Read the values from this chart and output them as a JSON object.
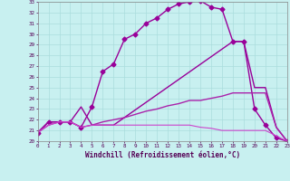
{
  "xlabel": "Windchill (Refroidissement éolien,°C)",
  "xlim": [
    0,
    23
  ],
  "ylim": [
    20,
    33
  ],
  "xtick_labels": [
    "0",
    "1",
    "2",
    "3",
    "4",
    "5",
    "6",
    "7",
    "8",
    "9",
    "10",
    "11",
    "12",
    "13",
    "14",
    "15",
    "16",
    "17",
    "18",
    "19",
    "20",
    "21",
    "22",
    "23"
  ],
  "ytick_labels": [
    "20",
    "21",
    "22",
    "23",
    "24",
    "25",
    "26",
    "27",
    "28",
    "29",
    "30",
    "31",
    "32",
    "33"
  ],
  "background_color": "#c8f0f0",
  "grid_color": "#aadddd",
  "curves": [
    {
      "x": [
        0,
        1,
        2,
        3,
        4,
        5,
        6,
        7,
        8,
        9,
        10,
        11,
        12,
        13,
        14,
        15,
        16,
        17,
        18,
        19,
        20,
        21,
        22,
        23
      ],
      "y": [
        20.8,
        21.8,
        21.8,
        21.8,
        21.3,
        23.2,
        26.5,
        27.2,
        29.5,
        30.0,
        31.0,
        31.5,
        32.3,
        32.8,
        33.0,
        33.1,
        32.5,
        32.3,
        29.3,
        29.3,
        23.0,
        21.5,
        20.3,
        20.0
      ],
      "marker": "D",
      "markersize": 2.5,
      "linewidth": 1.0,
      "color": "#990099"
    },
    {
      "x": [
        0,
        1,
        2,
        3,
        4,
        5,
        6,
        7,
        18,
        19,
        20,
        21,
        22,
        23
      ],
      "y": [
        20.8,
        21.8,
        21.8,
        21.8,
        23.2,
        21.5,
        21.5,
        21.5,
        29.3,
        29.3,
        25.0,
        25.0,
        21.3,
        20.0
      ],
      "marker": null,
      "linewidth": 1.0,
      "color": "#990099"
    },
    {
      "x": [
        0,
        1,
        2,
        3,
        4,
        5,
        6,
        7,
        8,
        9,
        10,
        11,
        12,
        13,
        14,
        15,
        16,
        17,
        18,
        19,
        20,
        21,
        22,
        23
      ],
      "y": [
        20.8,
        21.5,
        21.8,
        21.8,
        21.3,
        21.5,
        21.8,
        22.0,
        22.2,
        22.5,
        22.8,
        23.0,
        23.3,
        23.5,
        23.8,
        23.8,
        24.0,
        24.2,
        24.5,
        24.5,
        24.5,
        24.5,
        21.3,
        20.0
      ],
      "marker": null,
      "linewidth": 1.0,
      "color": "#aa22aa"
    },
    {
      "x": [
        0,
        1,
        2,
        3,
        4,
        5,
        6,
        7,
        8,
        9,
        10,
        11,
        12,
        13,
        14,
        15,
        16,
        17,
        18,
        19,
        20,
        21,
        22,
        23
      ],
      "y": [
        20.8,
        21.5,
        21.8,
        21.8,
        21.3,
        21.5,
        21.5,
        21.5,
        21.5,
        21.5,
        21.5,
        21.5,
        21.5,
        21.5,
        21.5,
        21.3,
        21.2,
        21.0,
        21.0,
        21.0,
        21.0,
        21.0,
        20.5,
        20.0
      ],
      "marker": null,
      "linewidth": 0.8,
      "color": "#cc44cc"
    }
  ]
}
